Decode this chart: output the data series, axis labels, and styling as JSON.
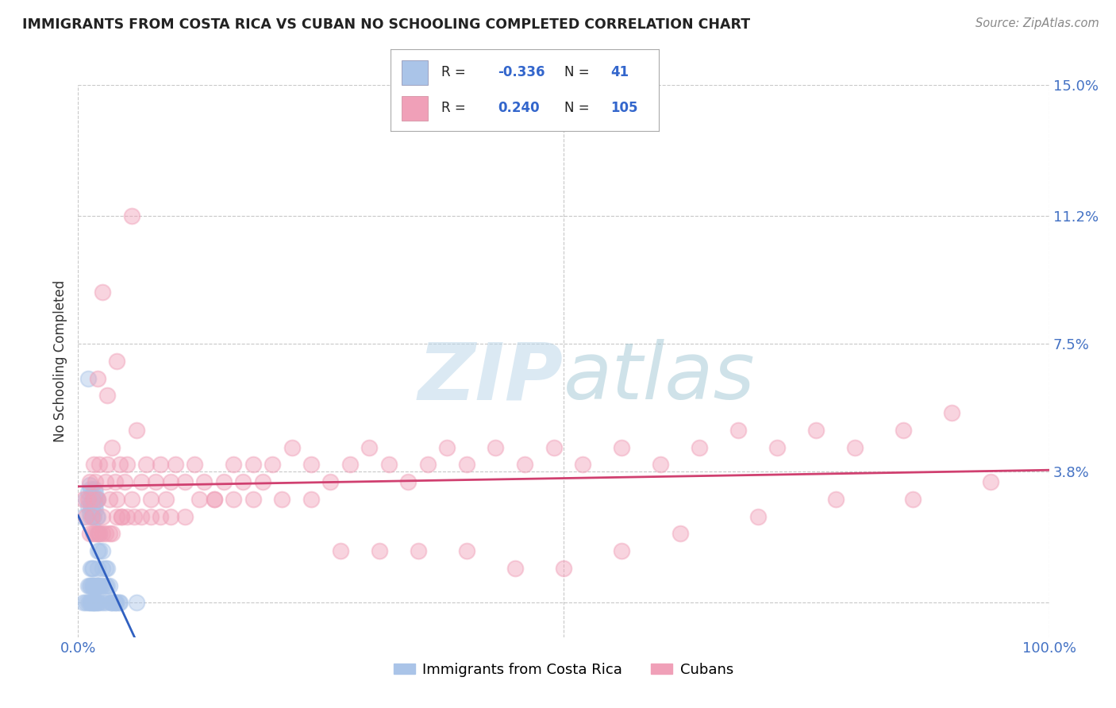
{
  "title": "IMMIGRANTS FROM COSTA RICA VS CUBAN NO SCHOOLING COMPLETED CORRELATION CHART",
  "source": "Source: ZipAtlas.com",
  "ylabel": "No Schooling Completed",
  "xlim": [
    0,
    1.0
  ],
  "ylim": [
    -0.01,
    0.15
  ],
  "ytick_vals": [
    0.0,
    0.038,
    0.075,
    0.112,
    0.15
  ],
  "ytick_labels": [
    "",
    "3.8%",
    "7.5%",
    "11.2%",
    "15.0%"
  ],
  "xtick_vals": [
    0.0,
    0.5,
    1.0
  ],
  "xtick_labels": [
    "0.0%",
    "",
    "100.0%"
  ],
  "cr_color": "#aac4e8",
  "cu_color": "#f0a0b8",
  "cr_line_color": "#3060c0",
  "cu_line_color": "#d04070",
  "background_color": "#ffffff",
  "grid_color": "#c8c8c8",
  "cr_scatter_x": [
    0.005,
    0.008,
    0.01,
    0.01,
    0.012,
    0.012,
    0.012,
    0.013,
    0.013,
    0.013,
    0.014,
    0.014,
    0.015,
    0.015,
    0.015,
    0.015,
    0.016,
    0.016,
    0.017,
    0.017,
    0.018,
    0.018,
    0.018,
    0.019,
    0.019,
    0.02,
    0.02,
    0.02,
    0.02,
    0.02,
    0.022,
    0.022,
    0.025,
    0.025,
    0.028,
    0.028,
    0.03,
    0.032,
    0.035,
    0.038,
    0.042
  ],
  "cr_scatter_y": [
    0.025,
    0.03,
    0.028,
    0.032,
    0.03,
    0.026,
    0.034,
    0.028,
    0.033,
    0.025,
    0.03,
    0.027,
    0.03,
    0.025,
    0.032,
    0.028,
    0.03,
    0.025,
    0.028,
    0.033,
    0.03,
    0.027,
    0.032,
    0.03,
    0.025,
    0.03,
    0.025,
    0.02,
    0.015,
    0.01,
    0.02,
    0.015,
    0.015,
    0.01,
    0.01,
    0.0,
    0.01,
    0.005,
    0.0,
    0.0,
    0.0
  ],
  "cr_scatter_x2": [
    0.005,
    0.008,
    0.01,
    0.012,
    0.013,
    0.014,
    0.015,
    0.016,
    0.017,
    0.018,
    0.019,
    0.02,
    0.02,
    0.022,
    0.025,
    0.01,
    0.012,
    0.013,
    0.013,
    0.014,
    0.014,
    0.015,
    0.015,
    0.016,
    0.017,
    0.018,
    0.019,
    0.02,
    0.021,
    0.022,
    0.023,
    0.025,
    0.028,
    0.03,
    0.033,
    0.035,
    0.038,
    0.04,
    0.043,
    0.01,
    0.06
  ],
  "cr_scatter_y2": [
    0.0,
    0.0,
    0.0,
    0.0,
    0.0,
    0.0,
    0.0,
    0.0,
    0.0,
    0.0,
    0.0,
    0.0,
    0.005,
    0.0,
    0.0,
    0.005,
    0.005,
    0.005,
    0.01,
    0.005,
    0.01,
    0.005,
    0.01,
    0.005,
    0.005,
    0.005,
    0.005,
    0.005,
    0.005,
    0.005,
    0.005,
    0.005,
    0.005,
    0.005,
    0.0,
    0.0,
    0.0,
    0.0,
    0.0,
    0.065,
    0.0
  ],
  "cu_scatter_x": [
    0.005,
    0.008,
    0.01,
    0.012,
    0.014,
    0.015,
    0.016,
    0.018,
    0.02,
    0.022,
    0.025,
    0.028,
    0.03,
    0.032,
    0.035,
    0.038,
    0.04,
    0.043,
    0.045,
    0.048,
    0.05,
    0.055,
    0.06,
    0.065,
    0.07,
    0.075,
    0.08,
    0.085,
    0.09,
    0.095,
    0.1,
    0.11,
    0.12,
    0.13,
    0.14,
    0.15,
    0.16,
    0.17,
    0.18,
    0.19,
    0.2,
    0.22,
    0.24,
    0.26,
    0.28,
    0.3,
    0.32,
    0.34,
    0.36,
    0.38,
    0.4,
    0.43,
    0.46,
    0.49,
    0.52,
    0.56,
    0.6,
    0.64,
    0.68,
    0.72,
    0.76,
    0.8,
    0.85,
    0.9,
    0.012,
    0.015,
    0.018,
    0.02,
    0.022,
    0.025,
    0.028,
    0.032,
    0.035,
    0.04,
    0.045,
    0.05,
    0.058,
    0.065,
    0.075,
    0.085,
    0.095,
    0.11,
    0.125,
    0.14,
    0.16,
    0.18,
    0.21,
    0.24,
    0.27,
    0.31,
    0.35,
    0.4,
    0.45,
    0.5,
    0.56,
    0.62,
    0.7,
    0.78,
    0.86,
    0.94,
    0.02,
    0.025,
    0.03,
    0.04,
    0.055
  ],
  "cu_scatter_y": [
    0.03,
    0.025,
    0.03,
    0.035,
    0.025,
    0.03,
    0.04,
    0.035,
    0.03,
    0.04,
    0.025,
    0.035,
    0.04,
    0.03,
    0.045,
    0.035,
    0.03,
    0.04,
    0.025,
    0.035,
    0.04,
    0.03,
    0.05,
    0.035,
    0.04,
    0.03,
    0.035,
    0.04,
    0.03,
    0.035,
    0.04,
    0.035,
    0.04,
    0.035,
    0.03,
    0.035,
    0.04,
    0.035,
    0.04,
    0.035,
    0.04,
    0.045,
    0.04,
    0.035,
    0.04,
    0.045,
    0.04,
    0.035,
    0.04,
    0.045,
    0.04,
    0.045,
    0.04,
    0.045,
    0.04,
    0.045,
    0.04,
    0.045,
    0.05,
    0.045,
    0.05,
    0.045,
    0.05,
    0.055,
    0.02,
    0.02,
    0.02,
    0.02,
    0.02,
    0.02,
    0.02,
    0.02,
    0.02,
    0.025,
    0.025,
    0.025,
    0.025,
    0.025,
    0.025,
    0.025,
    0.025,
    0.025,
    0.03,
    0.03,
    0.03,
    0.03,
    0.03,
    0.03,
    0.015,
    0.015,
    0.015,
    0.015,
    0.01,
    0.01,
    0.015,
    0.02,
    0.025,
    0.03,
    0.03,
    0.035,
    0.065,
    0.09,
    0.06,
    0.07,
    0.112
  ]
}
